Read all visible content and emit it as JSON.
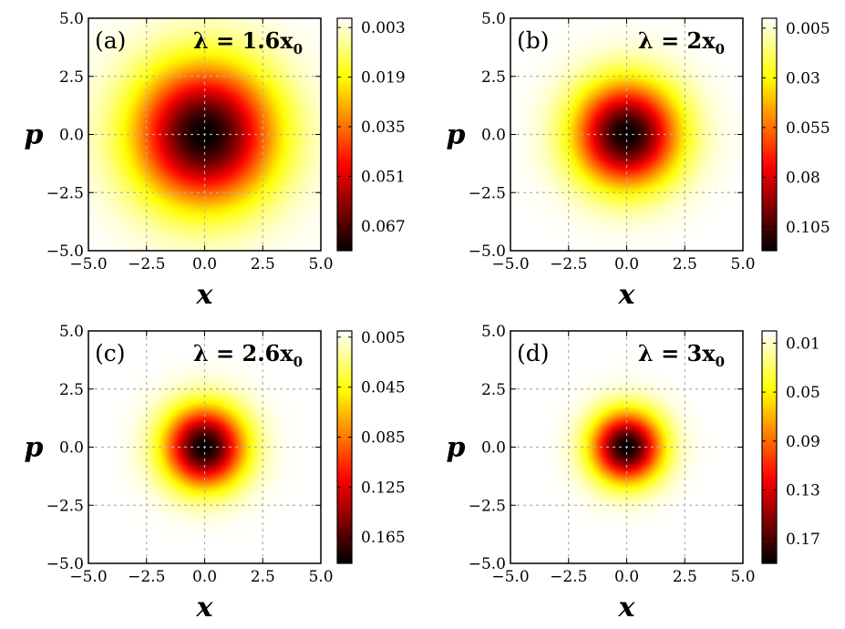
{
  "chart_data": [
    {
      "type": "heatmap",
      "panel_label": "(a)",
      "lambda_text": "λ = 1.6x",
      "lambda_sub": "0",
      "xlabel": "x",
      "ylabel": "p",
      "xlim": [
        -5.0,
        5.0
      ],
      "ylim": [
        -5.0,
        5.0
      ],
      "xticks": [
        "−5.0",
        "−2.5",
        "0.0",
        "2.5",
        "5.0"
      ],
      "yticks": [
        "5.0",
        "2.5",
        "0.0",
        "−2.5",
        "−5.0"
      ],
      "peak_value": 0.075,
      "sigma": 2.1,
      "colorbar": {
        "min": 0.0,
        "max": 0.075,
        "ticks": [
          0.003,
          0.019,
          0.035,
          0.051,
          0.067
        ],
        "labels": [
          "0.003",
          "0.019",
          "0.035",
          "0.051",
          "0.067"
        ]
      }
    },
    {
      "type": "heatmap",
      "panel_label": "(b)",
      "lambda_text": "λ = 2x",
      "lambda_sub": "0",
      "xlabel": "x",
      "ylabel": "p",
      "xlim": [
        -5.0,
        5.0
      ],
      "ylim": [
        -5.0,
        5.0
      ],
      "xticks": [
        "−5.0",
        "−2.5",
        "0.0",
        "2.5",
        "5.0"
      ],
      "yticks": [
        "5.0",
        "2.5",
        "0.0",
        "−2.5",
        "−5.0"
      ],
      "peak_value": 0.117,
      "sigma": 1.55,
      "colorbar": {
        "min": 0.0,
        "max": 0.117,
        "ticks": [
          0.005,
          0.03,
          0.055,
          0.08,
          0.105
        ],
        "labels": [
          "0.005",
          "0.03",
          "0.055",
          "0.08",
          "0.105"
        ]
      }
    },
    {
      "type": "heatmap",
      "panel_label": "(c)",
      "lambda_text": "λ = 2.6x",
      "lambda_sub": "0",
      "xlabel": "x",
      "ylabel": "p",
      "xlim": [
        -5.0,
        5.0
      ],
      "ylim": [
        -5.0,
        5.0
      ],
      "xticks": [
        "−5.0",
        "−2.5",
        "0.0",
        "2.5",
        "5.0"
      ],
      "yticks": [
        "5.0",
        "2.5",
        "0.0",
        "−2.5",
        "−5.0"
      ],
      "peak_value": 0.186,
      "sigma": 1.2,
      "colorbar": {
        "min": 0.0,
        "max": 0.186,
        "ticks": [
          0.005,
          0.045,
          0.085,
          0.125,
          0.165
        ],
        "labels": [
          "0.005",
          "0.045",
          "0.085",
          "0.125",
          "0.165"
        ]
      }
    },
    {
      "type": "heatmap",
      "panel_label": "(d)",
      "lambda_text": "λ = 3x",
      "lambda_sub": "0",
      "xlabel": "x",
      "ylabel": "p",
      "xlim": [
        -5.0,
        5.0
      ],
      "ylim": [
        -5.0,
        5.0
      ],
      "xticks": [
        "−5.0",
        "−2.5",
        "0.0",
        "2.5",
        "5.0"
      ],
      "yticks": [
        "5.0",
        "2.5",
        "0.0",
        "−2.5",
        "−5.0"
      ],
      "peak_value": 0.19,
      "sigma": 1.05,
      "colorbar": {
        "min": 0.0,
        "max": 0.19,
        "ticks": [
          0.01,
          0.05,
          0.09,
          0.13,
          0.17
        ],
        "labels": [
          "0.01",
          "0.05",
          "0.09",
          "0.13",
          "0.17"
        ]
      }
    }
  ]
}
